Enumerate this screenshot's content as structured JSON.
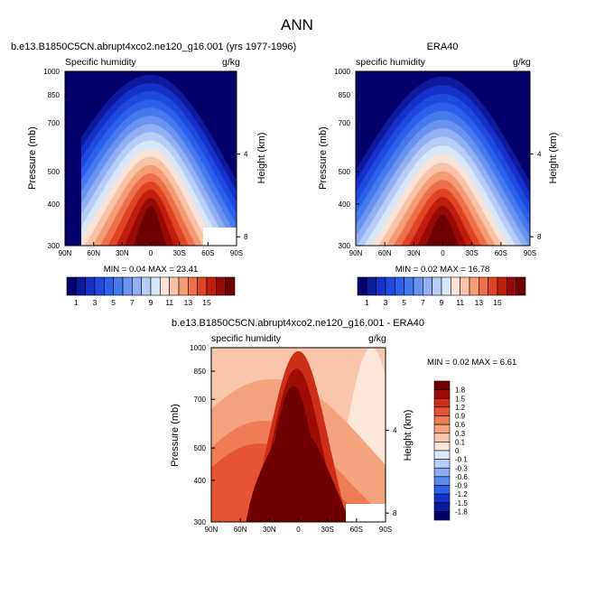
{
  "page_title": "ANN",
  "panels": [
    {
      "title": "b.e13.B1850C5CN.abrupt4xco2.ne120_g16.001 (yrs 1977-1996)",
      "left_label": "Specific humidity",
      "right_label": "g/kg",
      "stats": "MIN =  0.04  MAX = 23.41"
    },
    {
      "title": "ERA40",
      "left_label": "specific humidity",
      "right_label": "g/kg",
      "stats": "MIN =  0.02  MAX = 16.78"
    },
    {
      "title": "b.e13.B1850C5CN.abrupt4xco2.ne120_g16.001 - ERA40",
      "left_label": "specific humidity",
      "right_label": "g/kg",
      "stats": "MIN =  0.02  MAX =  6.61"
    }
  ],
  "colors": {
    "abs_scale": [
      "#04006b",
      "#0c1a9e",
      "#1531c9",
      "#1f49df",
      "#2b60ea",
      "#4679ee",
      "#6a93f0",
      "#90b0f3",
      "#b6cef6",
      "#d8e6f9",
      "#fae3d6",
      "#f8c3a6",
      "#f49c76",
      "#ee704a",
      "#df4424",
      "#c01d0f",
      "#980a05",
      "#700000"
    ],
    "diff_scale": [
      "#04006b",
      "#0c1a9e",
      "#1531c9",
      "#2b60ea",
      "#5c89ef",
      "#8aaaf2",
      "#b6cef6",
      "#dde9fa",
      "#fbe6d9",
      "#f8c6a8",
      "#f4a37e",
      "#ef7c55",
      "#e55533",
      "#cc2e17",
      "#9e0c06",
      "#700000"
    ]
  },
  "chart_data": [
    {
      "type": "heatmap",
      "variable": "Specific humidity",
      "units": "g/kg",
      "ylabel": "Pressure (mb)",
      "ylabel_right": "Height (km)",
      "x_ticks": [
        "90N",
        "60N",
        "30N",
        "0",
        "30S",
        "60S",
        "90S"
      ],
      "y_ticks": [
        300,
        400,
        500,
        700,
        850,
        1000
      ],
      "y_right_ticks": [
        8,
        4
      ],
      "colorbar_ticks": [
        "1",
        "3",
        "5",
        "7",
        "9",
        "11",
        "13",
        "15"
      ],
      "contour_levels": [
        0.5,
        1,
        2,
        3,
        4,
        5,
        6,
        7,
        8,
        9,
        10,
        11,
        12,
        13,
        14,
        15,
        16
      ],
      "min": 0.04,
      "max": 23.41
    },
    {
      "type": "heatmap",
      "variable": "specific humidity",
      "units": "g/kg",
      "ylabel": "Pressure (mb)",
      "ylabel_right": "Height (km)",
      "x_ticks": [
        "90N",
        "60N",
        "30N",
        "0",
        "30S",
        "60S",
        "90S"
      ],
      "y_ticks": [
        300,
        400,
        500,
        700,
        850,
        1000
      ],
      "y_right_ticks": [
        8,
        4
      ],
      "colorbar_ticks": [
        "1",
        "3",
        "5",
        "7",
        "9",
        "11",
        "13",
        "15"
      ],
      "contour_levels": [
        0.5,
        1,
        2,
        3,
        4,
        5,
        6,
        7,
        8,
        9,
        10,
        11,
        12,
        13,
        14,
        15,
        16
      ],
      "min": 0.02,
      "max": 16.78
    },
    {
      "type": "heatmap",
      "variable": "specific humidity",
      "units": "g/kg",
      "ylabel": "Pressure (mb)",
      "ylabel_right": "Height (km)",
      "x_ticks": [
        "90N",
        "60N",
        "30N",
        "0",
        "30S",
        "60S",
        "90S"
      ],
      "y_ticks": [
        300,
        400,
        500,
        700,
        850,
        1000
      ],
      "y_right_ticks": [
        8,
        4
      ],
      "colorbar_ticks": [
        "1.8",
        "1.5",
        "1.2",
        "0.9",
        "0.6",
        "0.3",
        "0.1",
        "0",
        "-0.1",
        "-0.3",
        "-0.6",
        "-0.9",
        "-1.2",
        "-1.5",
        "-1.8"
      ],
      "min": 0.02,
      "max": 6.61
    }
  ]
}
